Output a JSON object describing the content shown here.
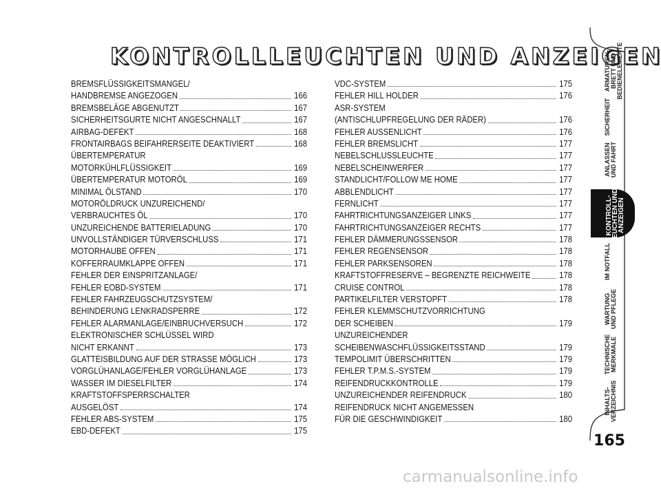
{
  "title": "KONTROLLLEUCHTEN UND ANZEIGEN",
  "left_column": [
    {
      "lines": [
        "BREMSFLÜSSIGKEITSMANGEL/"
      ],
      "last": "HANDBREMSE ANGEZOGEN",
      "page": "166"
    },
    {
      "lines": [],
      "last": "BREMSBELÄGE ABGENUTZT",
      "page": "167"
    },
    {
      "lines": [],
      "last": "SICHERHEITSGURTE NICHT ANGESCHNALLT",
      "page": "167"
    },
    {
      "lines": [],
      "last": "AIRBAG-DEFEKT",
      "page": "168"
    },
    {
      "lines": [],
      "last": "FRONTAIRBAGS BEIFAHRERSEITE DEAKTIVIERT",
      "page": "168"
    },
    {
      "lines": [
        "ÜBERTEMPERATUR"
      ],
      "last": "MOTORKÜHLFLÜSSIGKEIT",
      "page": "169"
    },
    {
      "lines": [],
      "last": "ÜBERTEMPERATUR MOTORÖL",
      "page": "169"
    },
    {
      "lines": [],
      "last": "MINIMAL ÖLSTAND",
      "page": "170"
    },
    {
      "lines": [
        "MOTORÖLDRUCK UNZUREICHEND/"
      ],
      "last": "VERBRAUCHTES ÖL",
      "page": "170"
    },
    {
      "lines": [],
      "last": "UNZUREICHENDE BATTERIELADUNG",
      "page": "170"
    },
    {
      "lines": [],
      "last": "UNVOLLSTÄNDIGER TÜRVERSCHLUSS",
      "page": "171"
    },
    {
      "lines": [],
      "last": "MOTORHAUBE OFFEN",
      "page": "171"
    },
    {
      "lines": [],
      "last": "KOFFERRAUMKLAPPE OFFEN",
      "page": "171"
    },
    {
      "lines": [
        "FEHLER DER EINSPRITZANLAGE/"
      ],
      "last": "FEHLER EOBD-SYSTEM",
      "page": "171"
    },
    {
      "lines": [
        "FEHLER FAHRZEUGSCHUTZSYSTEM/"
      ],
      "last": "BEHINDERUNG LENKRADSPERRE",
      "page": "172"
    },
    {
      "lines": [],
      "last": "FEHLER ALARMANLAGE/EINBRUCHVERSUCH",
      "page": "172"
    },
    {
      "lines": [
        "ELEKTRONISCHER SCHLÜSSEL WIRD"
      ],
      "last": "NICHT ERKANNT",
      "page": "173"
    },
    {
      "lines": [],
      "last": "GLATTEISBILDUNG AUF DER STRASSE MÖGLICH",
      "page": "173"
    },
    {
      "lines": [],
      "last": "VORGLÜHANLAGE/FEHLER VORGLÜHANLAGE",
      "page": "173"
    },
    {
      "lines": [],
      "last": "WASSER IM DIESELFILTER",
      "page": "174"
    },
    {
      "lines": [
        "KRAFTSTOFFSPERRSCHALTER"
      ],
      "last": "AUSGELÖST",
      "page": "174"
    },
    {
      "lines": [],
      "last": "FEHLER ABS-SYSTEM",
      "page": "175"
    },
    {
      "lines": [],
      "last": "EBD-DEFEKT",
      "page": "175"
    }
  ],
  "right_column": [
    {
      "lines": [],
      "last": "VDC-SYSTEM",
      "page": "175"
    },
    {
      "lines": [],
      "last": "FEHLER HILL HOLDER",
      "page": "176"
    },
    {
      "lines": [
        "ASR-SYSTEM"
      ],
      "last": "(ANTISCHLUPFREGELUNG DER RÄDER)",
      "page": "176"
    },
    {
      "lines": [],
      "last": "FEHLER AUSSENLICHT",
      "page": "176"
    },
    {
      "lines": [],
      "last": "FEHLER BREMSLICHT",
      "page": "177"
    },
    {
      "lines": [],
      "last": "NEBELSCHLUSSLEUCHTE",
      "page": "177"
    },
    {
      "lines": [],
      "last": "NEBELSCHEINWERFER",
      "page": "177"
    },
    {
      "lines": [],
      "last": "STANDLICHT/FOLLOW ME HOME",
      "page": "177"
    },
    {
      "lines": [],
      "last": "ABBLENDLICHT",
      "page": "177"
    },
    {
      "lines": [],
      "last": "FERNLICHT",
      "page": "177"
    },
    {
      "lines": [],
      "last": "FAHRTRICHTUNGSANZEIGER LINKS",
      "page": "177"
    },
    {
      "lines": [],
      "last": "FAHRTRICHTUNGSANZEIGER RECHTS",
      "page": "177"
    },
    {
      "lines": [],
      "last": "FEHLER DÄMMERUNGSSENSOR",
      "page": "178"
    },
    {
      "lines": [],
      "last": "FEHLER REGENSENSOR",
      "page": "178"
    },
    {
      "lines": [],
      "last": "FEHLER PARKSENSOREN",
      "page": "178"
    },
    {
      "lines": [],
      "last": "KRAFTSTOFFRESERVE – BEGRENZTE REICHWEITE",
      "page": "178"
    },
    {
      "lines": [],
      "last": "CRUISE CONTROL",
      "page": "178"
    },
    {
      "lines": [],
      "last": "PARTIKELFILTER VERSTOPFT",
      "page": "178"
    },
    {
      "lines": [
        "FEHLER KLEMMSCHUTZVORRICHTUNG"
      ],
      "last": "DER SCHEIBEN",
      "page": "179"
    },
    {
      "lines": [
        "UNZUREICHENDER"
      ],
      "last": "SCHEIBENWASCHFLÜSSIGKEITSSTAND",
      "page": "179"
    },
    {
      "lines": [],
      "last": "TEMPOLIMIT ÜBERSCHRITTEN",
      "page": "179"
    },
    {
      "lines": [],
      "last": "FEHLER T.P.M.S.-SYSTEM",
      "page": "179"
    },
    {
      "lines": [],
      "last": "REIFENDRUCKKONTROLLE",
      "page": "179"
    },
    {
      "lines": [],
      "last": "UNZUREICHENDER REIFENDRUCK",
      "page": "180"
    },
    {
      "lines": [
        "REIFENDRUCK NICHT ANGEMESSEN"
      ],
      "last": "FÜR DIE GESCHWINDIGKEIT",
      "page": "180"
    }
  ],
  "tabs": [
    {
      "label": "ARMATUREN-\nBRETT UND\nBEDIENELEMENTE",
      "active": false
    },
    {
      "label": "SICHERHEIT",
      "active": false
    },
    {
      "label": "ANLASSEN\nUND FAHRT",
      "active": false
    },
    {
      "label": "KONTROLL-\nLEUCHTEN UND\nANZEIGEN",
      "active": true
    },
    {
      "label": "IM NOTFALL",
      "active": false
    },
    {
      "label": "WARTUNG\nUND PFLEGE",
      "active": false
    },
    {
      "label": "TECHNISCHE\nMERKMALE",
      "active": false
    },
    {
      "label": "INHALTS-\nVERZEICHNIS",
      "active": false
    }
  ],
  "page_number": "165",
  "watermark": "carmanualsonline.info",
  "colors": {
    "ink": "#1a1a1a",
    "active_tab": "#111111",
    "watermark": "#c8c8c8"
  }
}
